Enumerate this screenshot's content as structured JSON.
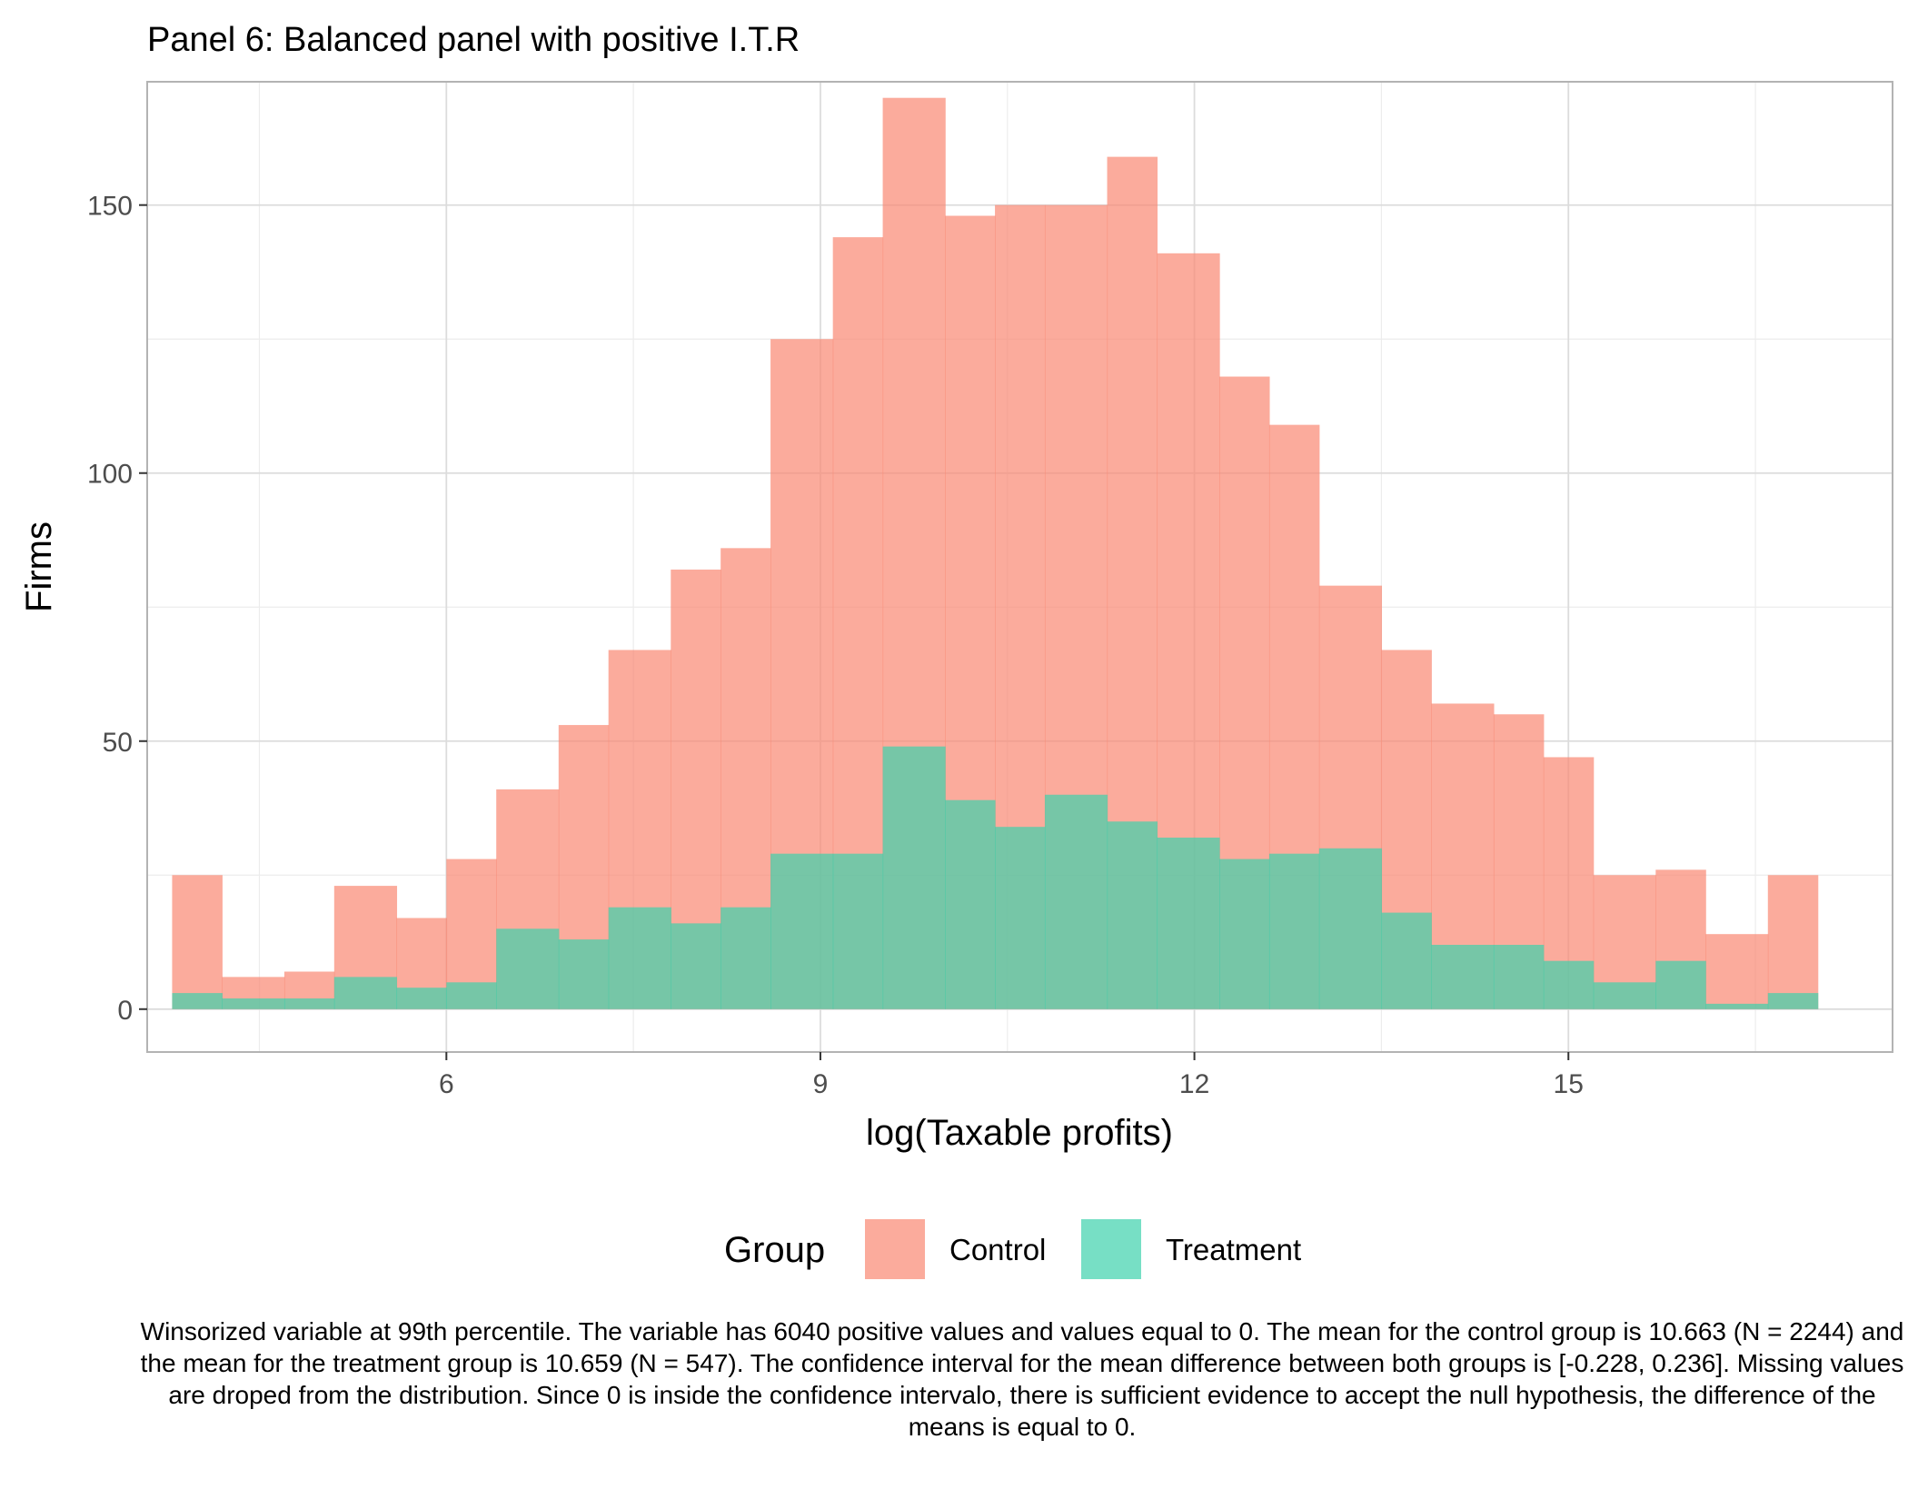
{
  "chart_data": {
    "type": "histogram",
    "title": "Panel 6: Balanced panel with positive I.T.R",
    "xlabel": "log(Taxable profits)",
    "ylabel": "Firms",
    "xlim": [
      3.6,
      17.6
    ],
    "ylim": [
      -8,
      173
    ],
    "x_ticks": [
      6,
      9,
      12,
      15
    ],
    "y_ticks": [
      0,
      50,
      100,
      150
    ],
    "grid": true,
    "bins": [
      [
        3.8,
        4.2
      ],
      [
        4.2,
        4.7
      ],
      [
        4.7,
        5.1
      ],
      [
        5.1,
        5.6
      ],
      [
        5.6,
        6.0
      ],
      [
        6.0,
        6.4
      ],
      [
        6.4,
        6.9
      ],
      [
        6.9,
        7.3
      ],
      [
        7.3,
        7.8
      ],
      [
        7.8,
        8.2
      ],
      [
        8.2,
        8.6
      ],
      [
        8.6,
        9.1
      ],
      [
        9.1,
        9.5
      ],
      [
        9.5,
        10.0
      ],
      [
        10.0,
        10.4
      ],
      [
        10.4,
        10.8
      ],
      [
        10.8,
        11.3
      ],
      [
        11.3,
        11.7
      ],
      [
        11.7,
        12.2
      ],
      [
        12.2,
        12.6
      ],
      [
        12.6,
        13.0
      ],
      [
        13.0,
        13.5
      ],
      [
        13.5,
        13.9
      ],
      [
        13.9,
        14.4
      ],
      [
        14.4,
        14.8
      ],
      [
        14.8,
        15.2
      ],
      [
        15.2,
        15.7
      ],
      [
        15.7,
        16.1
      ],
      [
        16.1,
        16.6
      ],
      [
        16.6,
        17.0
      ]
    ],
    "series": [
      {
        "name": "Control",
        "color": "#fa8872",
        "values": [
          25,
          6,
          7,
          23,
          17,
          28,
          41,
          53,
          67,
          82,
          86,
          125,
          144,
          170,
          148,
          150,
          150,
          159,
          141,
          118,
          109,
          79,
          67,
          57,
          55,
          47,
          25,
          26,
          14,
          25
        ]
      },
      {
        "name": "Treatment",
        "color": "#3dd1ac",
        "values": [
          3,
          2,
          2,
          6,
          4,
          5,
          15,
          13,
          19,
          16,
          19,
          29,
          29,
          49,
          39,
          34,
          40,
          35,
          32,
          28,
          29,
          30,
          18,
          12,
          12,
          9,
          5,
          9,
          1,
          3
        ]
      }
    ],
    "legend": {
      "title": "Group",
      "position": "bottom"
    }
  },
  "caption": "Winsorized variable at 99th percentile. The variable has 6040 positive values and values equal to 0. The mean for the control group is 10.663 (N = 2244) and the mean for the treatment group is 10.659 (N = 547). The confidence interval for the mean difference between both groups is [-0.228, 0.236]. Missing values are droped from the distribution. Since 0 is inside the confidence intervalo, there is sufficient evidence to accept the null hypothesis, the difference of the means is equal to 0."
}
